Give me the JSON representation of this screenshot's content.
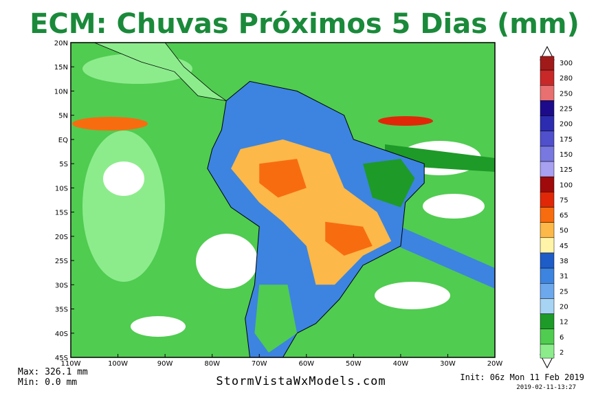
{
  "title": "ECM: Chuvas Próximos 5 Dias (mm)",
  "map": {
    "lat_labels": [
      "20N",
      "15N",
      "10N",
      "5N",
      "EQ",
      "5S",
      "10S",
      "15S",
      "20S",
      "25S",
      "30S",
      "35S",
      "40S",
      "45S"
    ],
    "lon_labels": [
      "110W",
      "100W",
      "90W",
      "80W",
      "70W",
      "60W",
      "50W",
      "40W",
      "30W",
      "20W"
    ]
  },
  "colorbar": {
    "levels": [
      {
        "value": 300,
        "color": "#a01a1a"
      },
      {
        "value": 280,
        "color": "#c82828"
      },
      {
        "value": 250,
        "color": "#e87070"
      },
      {
        "value": 225,
        "color": "#1c0c8c"
      },
      {
        "value": 200,
        "color": "#2c2cb0"
      },
      {
        "value": 175,
        "color": "#5050cc"
      },
      {
        "value": 150,
        "color": "#7878e0"
      },
      {
        "value": 125,
        "color": "#a8a0f0"
      },
      {
        "value": 100,
        "color": "#a00a0a"
      },
      {
        "value": 75,
        "color": "#e02808"
      },
      {
        "value": 65,
        "color": "#f86c10"
      },
      {
        "value": 50,
        "color": "#fcb848"
      },
      {
        "value": 45,
        "color": "#fff4a8"
      },
      {
        "value": 38,
        "color": "#1e5cc8"
      },
      {
        "value": 31,
        "color": "#3c84e0"
      },
      {
        "value": 25,
        "color": "#6ea8ec"
      },
      {
        "value": 20,
        "color": "#a8d4f4"
      },
      {
        "value": 12,
        "color": "#1e9a28"
      },
      {
        "value": 6,
        "color": "#50cc50"
      },
      {
        "value": 2,
        "color": "#8cec8c"
      }
    ]
  },
  "footer": {
    "max": "Max: 326.1 mm",
    "min": "Min: 0.0 mm",
    "site": "StormVistaWxModels.com",
    "init": "Init: 06z Mon 11 Feb 2019",
    "stamp": "2019-02-11-13:27"
  }
}
